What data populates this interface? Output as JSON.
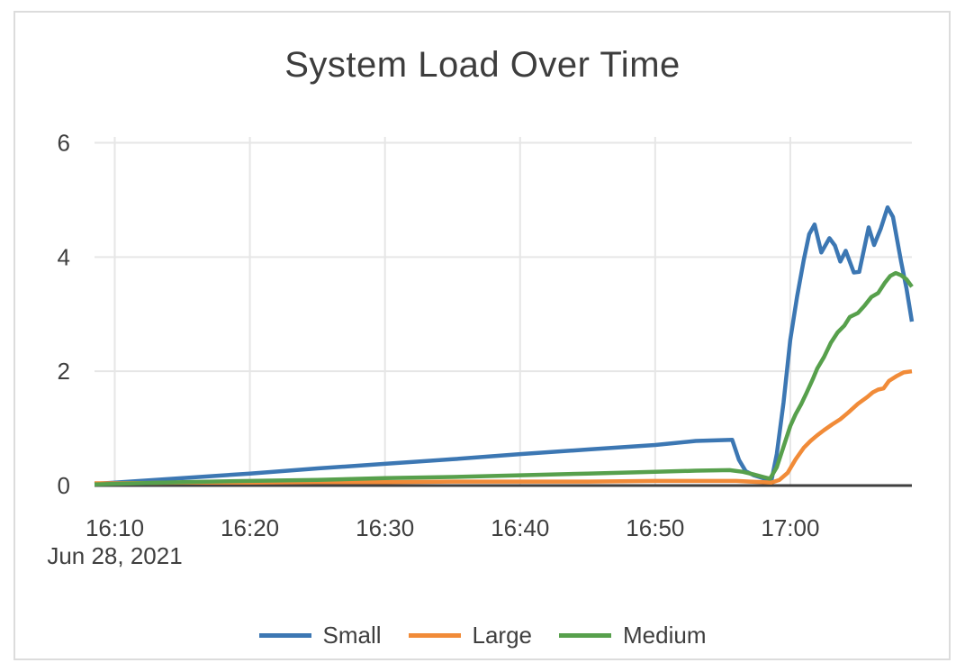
{
  "title": "System Load Over Time",
  "colors": {
    "background": "#ffffff",
    "card_border": "#dcdcdc",
    "grid": "#e6e6e6",
    "axis_line": "#3f3f3f",
    "text": "#3f3f3f",
    "title_text": "#3d3d3d",
    "series_small": "#3c77b3",
    "series_large": "#f18b38",
    "series_medium": "#57a04c"
  },
  "chart_data": {
    "type": "line",
    "title": "System Load Over Time",
    "xlabel": "",
    "ylabel": "",
    "grid": true,
    "legend_position": "bottom-center",
    "x_unit": "minutes after 16:00, Jun 28, 2021",
    "x_range": [
      8.5,
      69
    ],
    "y_range": [
      0,
      6.1
    ],
    "y_ticks": [
      0,
      2,
      4,
      6
    ],
    "x_ticks": [
      {
        "t": 10,
        "label": "16:10"
      },
      {
        "t": 20,
        "label": "16:20"
      },
      {
        "t": 30,
        "label": "16:30"
      },
      {
        "t": 40,
        "label": "16:40"
      },
      {
        "t": 50,
        "label": "16:50"
      },
      {
        "t": 60,
        "label": "17:00"
      }
    ],
    "x_date_label": "Jun 28, 2021",
    "series": [
      {
        "name": "Small",
        "color": "#3c77b3",
        "x": [
          8.5,
          10,
          15,
          20,
          25,
          30,
          35,
          40,
          45,
          50,
          53,
          55.7,
          56.2,
          56.7,
          57.3,
          58,
          58.6,
          59,
          59.5,
          60,
          60.5,
          61,
          61.4,
          61.8,
          62.3,
          62.9,
          63.3,
          63.7,
          64.1,
          64.7,
          65.1,
          65.8,
          66.2,
          66.7,
          67.2,
          67.6,
          68.2,
          68.6,
          69
        ],
        "y": [
          0.03,
          0.05,
          0.13,
          0.21,
          0.3,
          0.38,
          0.46,
          0.55,
          0.63,
          0.71,
          0.78,
          0.8,
          0.45,
          0.25,
          0.18,
          0.13,
          0.08,
          0.55,
          1.45,
          2.55,
          3.3,
          3.95,
          4.4,
          4.57,
          4.08,
          4.33,
          4.2,
          3.92,
          4.11,
          3.73,
          3.74,
          4.52,
          4.21,
          4.5,
          4.87,
          4.7,
          3.92,
          3.45,
          2.87
        ]
      },
      {
        "name": "Large",
        "color": "#f18b38",
        "x": [
          8.5,
          10,
          15,
          20,
          25,
          30,
          35,
          40,
          45,
          50,
          55,
          56,
          57,
          58,
          58.6,
          59.2,
          59.8,
          60.4,
          61,
          61.5,
          62,
          62.5,
          63.1,
          63.7,
          64.3,
          65,
          65.7,
          66.1,
          66.5,
          66.9,
          67.3,
          67.9,
          68.4,
          69
        ],
        "y": [
          0.04,
          0.04,
          0.05,
          0.05,
          0.06,
          0.06,
          0.07,
          0.07,
          0.07,
          0.08,
          0.08,
          0.08,
          0.07,
          0.06,
          0.05,
          0.1,
          0.22,
          0.46,
          0.66,
          0.78,
          0.88,
          0.97,
          1.07,
          1.16,
          1.28,
          1.43,
          1.55,
          1.63,
          1.68,
          1.7,
          1.83,
          1.92,
          1.98,
          2.0
        ]
      },
      {
        "name": "Medium",
        "color": "#57a04c",
        "x": [
          8.5,
          10,
          15,
          20,
          25,
          30,
          35,
          40,
          45,
          50,
          53,
          55.5,
          56.5,
          57.2,
          58,
          58.5,
          59,
          59.5,
          60,
          60.4,
          60.8,
          61.2,
          61.7,
          62,
          62.5,
          63,
          63.5,
          64,
          64.4,
          65,
          65.5,
          66,
          66.5,
          67,
          67.4,
          67.8,
          68.2,
          68.6,
          69
        ],
        "y": [
          0.02,
          0.03,
          0.06,
          0.08,
          0.1,
          0.13,
          0.15,
          0.18,
          0.21,
          0.24,
          0.26,
          0.27,
          0.24,
          0.2,
          0.15,
          0.12,
          0.32,
          0.68,
          1.04,
          1.25,
          1.42,
          1.62,
          1.88,
          2.05,
          2.25,
          2.5,
          2.68,
          2.8,
          2.95,
          3.02,
          3.15,
          3.3,
          3.37,
          3.55,
          3.67,
          3.72,
          3.68,
          3.61,
          3.48
        ]
      }
    ]
  },
  "legend": {
    "items": [
      {
        "label": "Small"
      },
      {
        "label": "Large"
      },
      {
        "label": "Medium"
      }
    ]
  }
}
